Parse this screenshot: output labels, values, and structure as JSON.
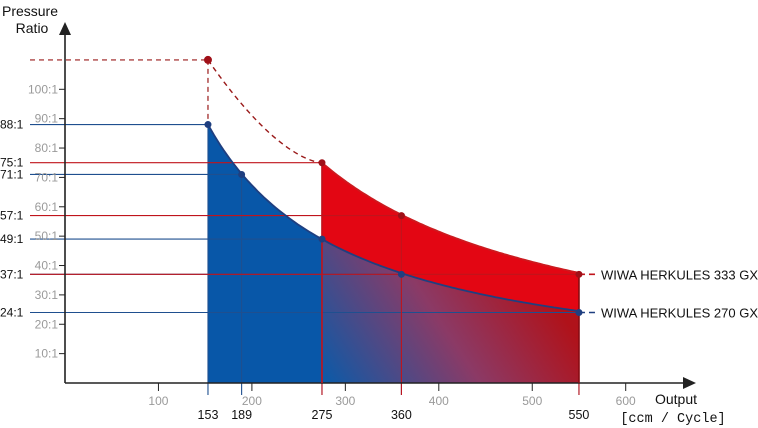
{
  "chart_data": {
    "type": "area",
    "title": "",
    "ylabel_lines": [
      "Pressure",
      "Ratio"
    ],
    "xlabel": "Output",
    "xunit": "[ccm / Cycle]",
    "x_ticks": [
      "100",
      "200",
      "300",
      "400",
      "500",
      "600"
    ],
    "y_ticks": [
      "10:1",
      "20:1",
      "30:1",
      "40:1",
      "50:1",
      "60:1",
      "70:1",
      "80:1",
      "90:1",
      "100:1"
    ],
    "xlim": [
      0,
      650
    ],
    "ylim": [
      0,
      115
    ],
    "grid": false,
    "series": [
      {
        "name": "WIWA HERKULES 333 GX",
        "color": "#cc1a1f",
        "fill": "#e30613",
        "x_start": 275,
        "x_end": 550,
        "points": [
          {
            "x": 275,
            "y": 75,
            "label": "75:1"
          },
          {
            "x": 360,
            "y": 57,
            "label": "57:1"
          },
          {
            "x": 550,
            "y": 37,
            "label": "37:1"
          }
        ],
        "dashed_extension": {
          "x": 153,
          "y": 110
        }
      },
      {
        "name": "WIWA HERKULES 270 GX",
        "color": "#1f3f80",
        "fill": "#0857a8",
        "x_start": 153,
        "x_end": 550,
        "points": [
          {
            "x": 153,
            "y": 88,
            "label": "88:1"
          },
          {
            "x": 189,
            "y": 71,
            "label": "71:1"
          },
          {
            "x": 275,
            "y": 49,
            "label": "49:1"
          },
          {
            "x": 360,
            "y": 37,
            "label": "37:1"
          },
          {
            "x": 550,
            "y": 24,
            "label": "24:1"
          }
        ]
      }
    ],
    "x_marks": [
      {
        "x": 153,
        "label": "153"
      },
      {
        "x": 189,
        "label": "189"
      },
      {
        "x": 275,
        "label": "275"
      },
      {
        "x": 360,
        "label": "360"
      },
      {
        "x": 550,
        "label": "550"
      }
    ]
  }
}
